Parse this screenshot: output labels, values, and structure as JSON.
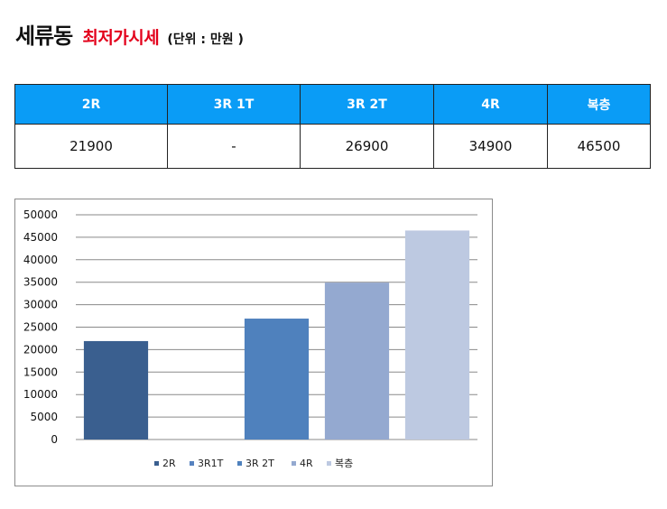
{
  "title": {
    "main": "세류동",
    "sub": "최저가시세",
    "unit": "(단위 : 만원 )"
  },
  "table": {
    "headers": [
      "2R",
      "3R 1T",
      "3R 2T",
      "4R",
      "복층"
    ],
    "values": [
      "21900",
      "-",
      "26900",
      "34900",
      "46500"
    ]
  },
  "chart_data": {
    "type": "bar",
    "categories": [
      "2R",
      "3R1T",
      "3R 2T",
      "4R",
      "복층"
    ],
    "values": [
      21900,
      0,
      26900,
      34900,
      46500
    ],
    "ylim": [
      0,
      50000
    ],
    "yticks": [
      0,
      5000,
      10000,
      15000,
      20000,
      25000,
      30000,
      35000,
      40000,
      45000,
      50000
    ],
    "colors": [
      "#3a5f8f",
      "#5682bf",
      "#4f81bd",
      "#94a9d0",
      "#bdc9e1"
    ],
    "grid": true,
    "legend": "bottom"
  }
}
